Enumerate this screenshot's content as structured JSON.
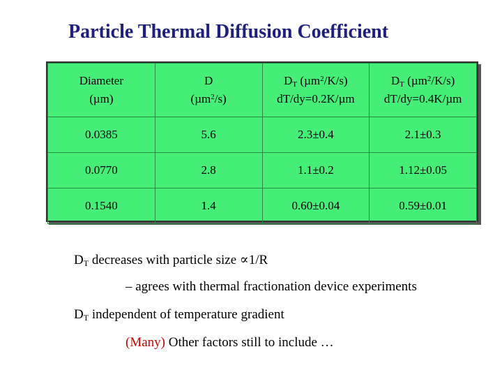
{
  "title": "Particle Thermal Diffusion Coefficient",
  "table": {
    "header": {
      "col1_line1": "Diameter",
      "col1_line2": "(µm)",
      "col2_line1": "D",
      "col2_line2_pre": "(µm",
      "col2_line2_sup": "2",
      "col2_line2_post": "/s)",
      "col3_D": "D",
      "col3_sub": "T",
      "col3_unit_pre": " (µm",
      "col3_unit_sup": "2",
      "col3_unit_post": "/K/s)",
      "col3_line2": "dT/dy=0.2K/µm",
      "col4_D": "D",
      "col4_sub": "T",
      "col4_unit_pre": " (µm",
      "col4_unit_sup": "2",
      "col4_unit_post": "/K/s)",
      "col4_line2": "dT/dy=0.4K/µm"
    },
    "rows": [
      {
        "diameter": "0.0385",
        "d": "5.6",
        "dt_02": "2.3±0.4",
        "dt_04": "2.1±0.3"
      },
      {
        "diameter": "0.0770",
        "d": "2.8",
        "dt_02": "1.1±0.2",
        "dt_04": "1.12±0.05"
      },
      {
        "diameter": "0.1540",
        "d": "1.4",
        "dt_02": "0.60±0.04",
        "dt_04": "0.59±0.01"
      }
    ]
  },
  "notes": {
    "n1_D": "D",
    "n1_sub": "T",
    "n1_text": " decreases with particle size ∝1/R",
    "n2_text": "– agrees with thermal fractionation device experiments",
    "n3_D": "D",
    "n3_sub": "T",
    "n3_text": " independent of temperature gradient",
    "n4_red": "(Many)",
    "n4_text": " Other factors still to include …"
  },
  "colors": {
    "title": "#1f1f80",
    "table_bg": "#44ee77",
    "accent_red": "#cc0000"
  }
}
